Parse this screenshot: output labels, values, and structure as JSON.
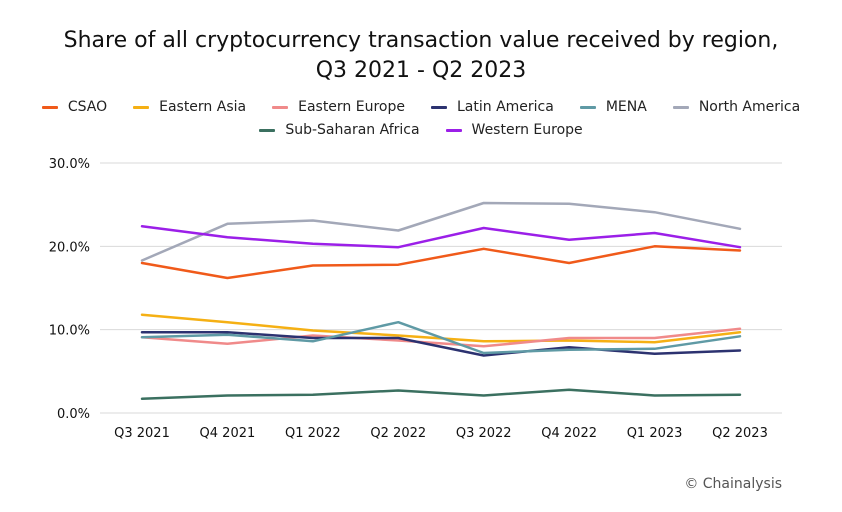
{
  "chart_data": {
    "type": "line",
    "title_line1": "Share of all cryptocurrency transaction value received by region,",
    "title_line2": "Q3 2021 - Q2 2023",
    "xlabel": "",
    "ylabel": "",
    "categories": [
      "Q3 2021",
      "Q4 2021",
      "Q1 2022",
      "Q2 2022",
      "Q3 2022",
      "Q4 2022",
      "Q1 2023",
      "Q2 2023"
    ],
    "ylim": [
      0,
      30
    ],
    "yticks": [
      0,
      10,
      20,
      30
    ],
    "ytick_labels": [
      "0.0%",
      "10.0%",
      "20.0%",
      "30.0%"
    ],
    "grid": true,
    "legend_position": "top",
    "series": [
      {
        "name": "CSAO",
        "color": "#f05a1a",
        "values": [
          18.0,
          16.2,
          17.7,
          17.8,
          19.7,
          18.0,
          20.0,
          19.5
        ]
      },
      {
        "name": "Eastern Asia",
        "color": "#f5b014",
        "values": [
          11.8,
          10.9,
          9.9,
          9.3,
          8.6,
          8.7,
          8.5,
          9.7
        ]
      },
      {
        "name": "Eastern Europe",
        "color": "#f08a8a",
        "values": [
          9.1,
          8.3,
          9.3,
          8.7,
          8.0,
          9.0,
          9.0,
          10.1
        ]
      },
      {
        "name": "Latin America",
        "color": "#2c3270",
        "values": [
          9.7,
          9.7,
          9.0,
          9.0,
          6.9,
          7.9,
          7.1,
          7.5
        ]
      },
      {
        "name": "MENA",
        "color": "#5f9aa5",
        "values": [
          9.1,
          9.4,
          8.6,
          10.9,
          7.2,
          7.6,
          7.7,
          9.2
        ]
      },
      {
        "name": "North America",
        "color": "#a3a8b8",
        "values": [
          18.3,
          22.7,
          23.1,
          21.9,
          25.2,
          25.1,
          24.1,
          22.1
        ]
      },
      {
        "name": "Sub-Saharan Africa",
        "color": "#3b7060",
        "values": [
          1.7,
          2.1,
          2.2,
          2.7,
          2.1,
          2.8,
          2.1,
          2.2
        ]
      },
      {
        "name": "Western Europe",
        "color": "#9b1fe8",
        "values": [
          22.4,
          21.1,
          20.3,
          19.9,
          22.2,
          20.8,
          21.6,
          19.9
        ]
      }
    ],
    "gridline_color": "#d9d9d9"
  },
  "source": "© Chainalysis"
}
